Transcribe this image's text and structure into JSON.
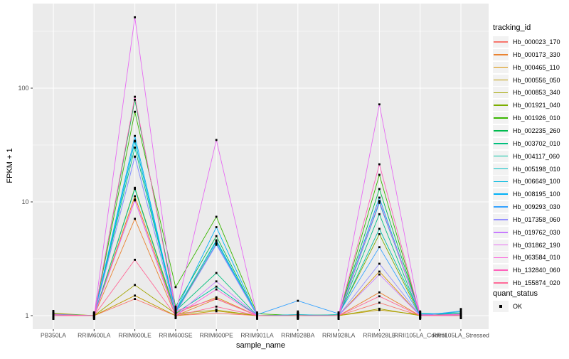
{
  "figure": {
    "background": "#FFFFFF",
    "panel_background": "#EBEBEB",
    "grid_color": "#FFFFFF",
    "axis_text_color": "#4D4D4D",
    "title_text_color": "#000000",
    "point_color": "#000000",
    "legend_key_background": "#F2F2F2"
  },
  "axes": {
    "x_title": "sample_name",
    "y_title": "FPKM + 1",
    "y_tick_labels": [
      "1",
      "10",
      "100"
    ]
  },
  "legend": {
    "color_title": "tracking_id",
    "shape_title": "quant_status",
    "shape_items": [
      "OK"
    ]
  },
  "chart_data": {
    "type": "line",
    "title": "",
    "xlabel": "sample_name",
    "ylabel": "FPKM + 1",
    "y_scale": "log10",
    "y_ticks": [
      1,
      10,
      100
    ],
    "ylim_displayed": [
      0.9,
      560
    ],
    "grid": "major-and-minor, white on grey panel",
    "legend_position": "right",
    "point_marker": "small black square (quant_status = OK)",
    "categories": [
      "PB350LA",
      "RRIM600LA",
      "RRIM600LE",
      "RRIM600SE",
      "RRIM600PE",
      "RRIM901LA",
      "RRIM928BA",
      "RRIM928LA",
      "RRIM928LB",
      "RRII105LA_Control",
      "RRII105LA_Stressed"
    ],
    "series": [
      {
        "name": "Hb_000023_170",
        "color": "#F8766D",
        "values": [
          1.03,
          1.0,
          1.4,
          1.0,
          1.05,
          1.0,
          1.0,
          1.0,
          1.3,
          1.0,
          1.0
        ]
      },
      {
        "name": "Hb_000173_330",
        "color": "#EA8331",
        "values": [
          1.0,
          1.0,
          7.1,
          1.0,
          1.4,
          1.0,
          1.0,
          1.0,
          1.6,
          1.0,
          1.02
        ]
      },
      {
        "name": "Hb_000465_110",
        "color": "#D89000",
        "values": [
          1.04,
          1.0,
          11.2,
          1.05,
          1.45,
          1.0,
          1.02,
          1.0,
          2.44,
          1.0,
          1.0
        ]
      },
      {
        "name": "Hb_000556_050",
        "color": "#C09B00",
        "values": [
          1.0,
          1.0,
          1.5,
          1.0,
          1.1,
          1.0,
          1.0,
          1.0,
          1.12,
          1.02,
          1.0
        ]
      },
      {
        "name": "Hb_000853_340",
        "color": "#A3A500",
        "values": [
          1.05,
          1.0,
          1.86,
          1.04,
          1.12,
          1.0,
          1.0,
          1.0,
          1.15,
          1.0,
          1.03
        ]
      },
      {
        "name": "Hb_001921_040",
        "color": "#7CAE00",
        "values": [
          1.0,
          1.0,
          13.3,
          1.08,
          4.3,
          1.0,
          1.0,
          1.02,
          5.2,
          1.0,
          1.0
        ]
      },
      {
        "name": "Hb_001926_010",
        "color": "#39B600",
        "values": [
          1.02,
          1.0,
          62.0,
          1.78,
          7.4,
          1.04,
          1.0,
          1.0,
          17.3,
          1.0,
          1.02
        ]
      },
      {
        "name": "Hb_002235_260",
        "color": "#00BB4E",
        "values": [
          1.0,
          1.0,
          79.0,
          1.2,
          5.0,
          1.0,
          1.0,
          1.0,
          13.0,
          1.02,
          1.0
        ]
      },
      {
        "name": "Hb_003702_010",
        "color": "#00BF7D",
        "values": [
          1.0,
          1.0,
          30.0,
          1.1,
          2.37,
          1.0,
          1.0,
          1.0,
          7.8,
          1.0,
          1.05
        ]
      },
      {
        "name": "Hb_004117_060",
        "color": "#00C1A3",
        "values": [
          1.02,
          1.0,
          13.0,
          1.05,
          1.8,
          1.0,
          1.0,
          1.0,
          5.8,
          1.03,
          1.05
        ]
      },
      {
        "name": "Hb_005198_010",
        "color": "#00BFC4",
        "values": [
          1.0,
          1.0,
          34.0,
          1.1,
          4.5,
          1.0,
          1.0,
          1.02,
          10.0,
          1.02,
          1.08
        ]
      },
      {
        "name": "Hb_006649_100",
        "color": "#00BAE0",
        "values": [
          1.0,
          1.0,
          34.5,
          1.08,
          4.6,
          1.0,
          1.02,
          1.0,
          9.8,
          1.05,
          1.02
        ]
      },
      {
        "name": "Hb_008195_100",
        "color": "#00B0F6",
        "values": [
          1.03,
          1.0,
          38.0,
          1.1,
          6.0,
          1.0,
          1.0,
          1.0,
          10.9,
          1.0,
          1.0
        ]
      },
      {
        "name": "Hb_009293_030",
        "color": "#35A2FF",
        "values": [
          1.0,
          1.0,
          25.0,
          1.05,
          4.3,
          1.02,
          1.35,
          1.04,
          4.0,
          1.0,
          1.1
        ]
      },
      {
        "name": "Hb_017358_060",
        "color": "#9590FF",
        "values": [
          1.0,
          1.0,
          25.0,
          1.05,
          4.2,
          1.0,
          1.0,
          1.0,
          2.86,
          1.0,
          1.0
        ]
      },
      {
        "name": "Hb_019762_030",
        "color": "#C77CFF",
        "values": [
          1.02,
          1.0,
          10.3,
          1.0,
          2.0,
          1.0,
          1.0,
          1.0,
          2.3,
          1.0,
          1.02
        ]
      },
      {
        "name": "Hb_031862_190",
        "color": "#E76BF3",
        "values": [
          1.0,
          1.0,
          420.0,
          1.05,
          35.0,
          1.0,
          1.0,
          1.0,
          72.0,
          1.0,
          1.0
        ]
      },
      {
        "name": "Hb_063584_010",
        "color": "#FA62DB",
        "values": [
          1.0,
          1.0,
          10.5,
          1.0,
          1.7,
          1.0,
          1.0,
          1.0,
          10.2,
          1.02,
          1.0
        ]
      },
      {
        "name": "Hb_132840_060",
        "color": "#FF62BC",
        "values": [
          1.02,
          1.0,
          84.0,
          1.1,
          1.41,
          1.0,
          1.0,
          1.0,
          21.4,
          1.0,
          1.03
        ]
      },
      {
        "name": "Hb_155874_020",
        "color": "#FF6A98",
        "values": [
          1.0,
          1.0,
          3.1,
          1.0,
          1.2,
          1.0,
          1.0,
          1.0,
          1.48,
          1.0,
          1.0
        ]
      }
    ]
  }
}
